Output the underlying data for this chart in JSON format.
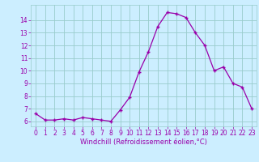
{
  "x": [
    0,
    1,
    2,
    3,
    4,
    5,
    6,
    7,
    8,
    9,
    10,
    11,
    12,
    13,
    14,
    15,
    16,
    17,
    18,
    19,
    20,
    21,
    22,
    23
  ],
  "y": [
    6.6,
    6.1,
    6.1,
    6.2,
    6.1,
    6.3,
    6.2,
    6.1,
    6.0,
    6.9,
    7.9,
    9.9,
    11.5,
    13.5,
    14.6,
    14.5,
    14.2,
    13.0,
    12.0,
    10.0,
    10.3,
    9.0,
    8.7,
    7.0
  ],
  "line_color": "#9900aa",
  "marker": "+",
  "bg_color": "#cceeff",
  "grid_color": "#99cccc",
  "xlabel": "Windchill (Refroidissement éolien,°C)",
  "xlabel_color": "#9900aa",
  "xlabel_fontsize": 6.0,
  "tick_color": "#9900aa",
  "tick_fontsize": 5.5,
  "yticks": [
    6,
    7,
    8,
    9,
    10,
    11,
    12,
    13,
    14
  ],
  "ylim": [
    5.6,
    15.2
  ],
  "xlim": [
    -0.5,
    23.5
  ]
}
